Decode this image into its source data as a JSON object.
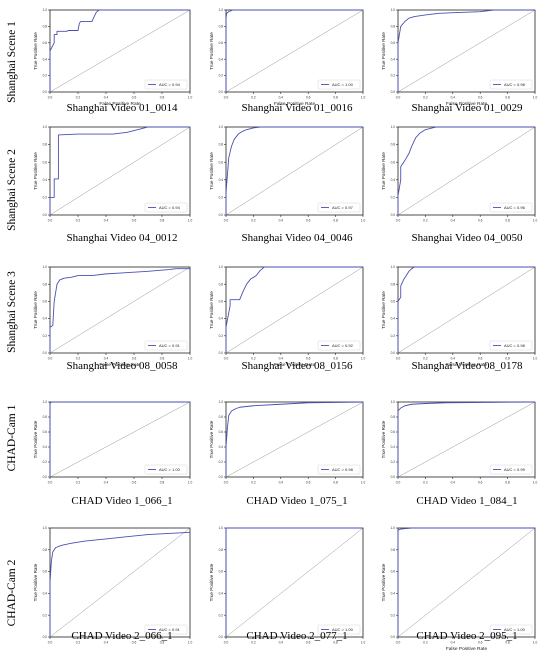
{
  "row_labels": [
    "Shanghai Scene 1",
    "Shanghai Scene 2",
    "Shanghai Scene 3",
    "CHAD-Cam 1",
    "CHAD-Cam 2"
  ],
  "chart_data": [
    {
      "type": "line",
      "title": "Shanghai Video 01_0014",
      "xlabel": "False Positive Rate",
      "ylabel": "True Positive Rate",
      "legend": "AUC = 0.94",
      "legend_position": "bottom-right",
      "xlim": [
        0,
        1
      ],
      "ylim": [
        0,
        1
      ],
      "ticks": [
        "0.0",
        "0.2",
        "0.4",
        "0.6",
        "0.8",
        "1.0"
      ],
      "series": [
        {
          "x": [
            0,
            0,
            0.03,
            0.03,
            0.05,
            0.05,
            0.12,
            0.13,
            0.2,
            0.21,
            0.22,
            0.3,
            0.31,
            0.33,
            0.35,
            1
          ],
          "y": [
            0,
            0.5,
            0.6,
            0.7,
            0.7,
            0.74,
            0.74,
            0.75,
            0.75,
            0.84,
            0.86,
            0.86,
            0.9,
            0.97,
            1,
            1
          ]
        },
        {
          "x": [
            0,
            1
          ],
          "y": [
            0,
            1
          ]
        }
      ]
    },
    {
      "type": "line",
      "title": "Shanghai Video 01_0016",
      "xlabel": "False Positive Rate",
      "ylabel": "True Positive Rate",
      "legend": "AUC = 1.00",
      "legend_position": "bottom-right",
      "xlim": [
        0,
        1
      ],
      "ylim": [
        0,
        1
      ],
      "ticks": [
        "0.0",
        "0.2",
        "0.4",
        "0.6",
        "0.8",
        "1.0"
      ],
      "series": [
        {
          "x": [
            0,
            0,
            0.005,
            0.02,
            0.05,
            1
          ],
          "y": [
            0,
            0.9,
            0.96,
            0.98,
            1,
            1
          ]
        },
        {
          "x": [
            0,
            1
          ],
          "y": [
            0,
            1
          ]
        }
      ]
    },
    {
      "type": "line",
      "title": "Shanghai Video 01_0029",
      "xlabel": "False Positive Rate",
      "ylabel": "True Positive Rate",
      "legend": "AUC = 0.98",
      "legend_position": "bottom-right",
      "xlim": [
        0,
        1
      ],
      "ylim": [
        0,
        1
      ],
      "ticks": [
        "0.0",
        "0.2",
        "0.4",
        "0.6",
        "0.8",
        "1.0"
      ],
      "series": [
        {
          "x": [
            0,
            0,
            0.02,
            0.05,
            0.08,
            0.12,
            0.2,
            0.3,
            0.45,
            0.6,
            0.7,
            1
          ],
          "y": [
            0,
            0.6,
            0.8,
            0.86,
            0.9,
            0.92,
            0.94,
            0.96,
            0.97,
            0.98,
            1,
            1
          ]
        },
        {
          "x": [
            0,
            1
          ],
          "y": [
            0,
            1
          ]
        }
      ]
    },
    {
      "type": "line",
      "title": "Shanghai Video 04_0012",
      "xlabel": "",
      "ylabel": "True Positive Rate",
      "legend": "AUC = 0.94",
      "legend_position": "bottom-right",
      "xlim": [
        0,
        1
      ],
      "ylim": [
        0,
        1
      ],
      "ticks": [
        "0.0",
        "0.2",
        "0.4",
        "0.6",
        "0.8",
        "1.0"
      ],
      "series": [
        {
          "x": [
            0,
            0,
            0.03,
            0.03,
            0.06,
            0.06,
            0.2,
            0.45,
            0.55,
            0.6,
            0.65,
            0.7,
            1
          ],
          "y": [
            0,
            0.2,
            0.2,
            0.41,
            0.41,
            0.91,
            0.92,
            0.92,
            0.94,
            0.96,
            0.98,
            1,
            1
          ]
        },
        {
          "x": [
            0,
            1
          ],
          "y": [
            0,
            1
          ]
        }
      ]
    },
    {
      "type": "line",
      "title": "Shanghai Video 04_0046",
      "xlabel": "",
      "ylabel": "True Positive Rate",
      "legend": "AUC = 0.97",
      "legend_position": "bottom-right",
      "xlim": [
        0,
        1
      ],
      "ylim": [
        0,
        1
      ],
      "ticks": [
        "0.0",
        "0.2",
        "0.4",
        "0.6",
        "0.8",
        "1.0"
      ],
      "series": [
        {
          "x": [
            0,
            0,
            0.01,
            0.02,
            0.04,
            0.06,
            0.09,
            0.12,
            0.15,
            0.2,
            0.25,
            1
          ],
          "y": [
            0,
            0.25,
            0.45,
            0.65,
            0.78,
            0.86,
            0.92,
            0.95,
            0.97,
            0.99,
            1,
            1
          ]
        },
        {
          "x": [
            0,
            1
          ],
          "y": [
            0,
            1
          ]
        }
      ]
    },
    {
      "type": "line",
      "title": "Shanghai Video 04_0050",
      "xlabel": "",
      "ylabel": "True Positive Rate",
      "legend": "AUC = 0.96",
      "legend_position": "bottom-right",
      "xlim": [
        0,
        1
      ],
      "ylim": [
        0,
        1
      ],
      "ticks": [
        "0.0",
        "0.2",
        "0.4",
        "0.6",
        "0.8",
        "1.0"
      ],
      "series": [
        {
          "x": [
            0,
            0,
            0.02,
            0.02,
            0.05,
            0.08,
            0.1,
            0.13,
            0.16,
            0.2,
            0.28,
            1
          ],
          "y": [
            0,
            0.22,
            0.4,
            0.55,
            0.62,
            0.7,
            0.78,
            0.88,
            0.93,
            0.97,
            1,
            1
          ]
        },
        {
          "x": [
            0,
            1
          ],
          "y": [
            0,
            1
          ]
        }
      ]
    },
    {
      "type": "line",
      "title": "Shanghai Video 08_0058",
      "xlabel": "False Positive Rate",
      "ylabel": "True Positive Rate",
      "legend": "AUC = 0.91",
      "legend_position": "bottom-right",
      "xlim": [
        0,
        1
      ],
      "ylim": [
        0,
        1
      ],
      "ticks": [
        "0.0",
        "0.2",
        "0.4",
        "0.6",
        "0.8",
        "1.0"
      ],
      "series": [
        {
          "x": [
            0,
            0,
            0.02,
            0.03,
            0.05,
            0.07,
            0.1,
            0.15,
            0.2,
            0.3,
            0.4,
            0.5,
            0.6,
            0.7,
            0.85,
            0.9,
            1
          ],
          "y": [
            0,
            0.3,
            0.32,
            0.6,
            0.8,
            0.85,
            0.87,
            0.88,
            0.9,
            0.9,
            0.92,
            0.93,
            0.94,
            0.95,
            0.97,
            0.98,
            0.98
          ]
        },
        {
          "x": [
            0,
            1
          ],
          "y": [
            0,
            1
          ]
        }
      ]
    },
    {
      "type": "line",
      "title": "Shanghai Video 08_0156",
      "xlabel": "False Positive Rate",
      "ylabel": "True Positive Rate",
      "legend": "AUC = 0.92",
      "legend_position": "bottom-right",
      "xlim": [
        0,
        1
      ],
      "ylim": [
        0,
        1
      ],
      "ticks": [
        "0.0",
        "0.2",
        "0.4",
        "0.6",
        "0.8",
        "1.0"
      ],
      "series": [
        {
          "x": [
            0,
            0,
            0.03,
            0.03,
            0.1,
            0.12,
            0.15,
            0.18,
            0.22,
            0.25,
            0.28,
            1
          ],
          "y": [
            0,
            0.3,
            0.55,
            0.62,
            0.62,
            0.7,
            0.8,
            0.86,
            0.9,
            0.96,
            1,
            1
          ]
        },
        {
          "x": [
            0,
            1
          ],
          "y": [
            0,
            1
          ]
        }
      ]
    },
    {
      "type": "line",
      "title": "Shanghai Video 08_0178",
      "xlabel": "False Positive Rate",
      "ylabel": "True Positive Rate",
      "legend": "AUC = 0.98",
      "legend_position": "bottom-right",
      "xlim": [
        0,
        1
      ],
      "ylim": [
        0,
        1
      ],
      "ticks": [
        "0.0",
        "0.2",
        "0.4",
        "0.6",
        "0.8",
        "1.0"
      ],
      "series": [
        {
          "x": [
            0,
            0,
            0.02,
            0.02,
            0.04,
            0.06,
            0.08,
            0.1,
            0.12,
            1
          ],
          "y": [
            0,
            0.6,
            0.65,
            0.78,
            0.85,
            0.9,
            0.95,
            0.98,
            1,
            1
          ]
        },
        {
          "x": [
            0,
            1
          ],
          "y": [
            0,
            1
          ]
        }
      ]
    },
    {
      "type": "line",
      "title": "CHAD Video 1_066_1",
      "xlabel": "",
      "ylabel": "True Positive Rate",
      "legend": "AUC = 1.00",
      "legend_position": "bottom-right",
      "xlim": [
        0,
        1
      ],
      "ylim": [
        0,
        1
      ],
      "ticks": [
        "0.0",
        "0.2",
        "0.4",
        "0.6",
        "0.8",
        "1.0"
      ],
      "series": [
        {
          "x": [
            0,
            0,
            0.01,
            1
          ],
          "y": [
            0,
            0.98,
            1,
            1
          ]
        },
        {
          "x": [
            0,
            1
          ],
          "y": [
            0,
            1
          ]
        }
      ]
    },
    {
      "type": "line",
      "title": "CHAD Video 1_075_1",
      "xlabel": "",
      "ylabel": "True Positive Rate",
      "legend": "AUC = 0.98",
      "legend_position": "bottom-right",
      "xlim": [
        0,
        1
      ],
      "ylim": [
        0,
        1
      ],
      "ticks": [
        "0.0",
        "0.2",
        "0.4",
        "0.6",
        "0.8",
        "1.0"
      ],
      "series": [
        {
          "x": [
            0,
            0,
            0.01,
            0.02,
            0.04,
            0.07,
            0.1,
            0.2,
            0.4,
            0.6,
            1
          ],
          "y": [
            0,
            0.4,
            0.65,
            0.82,
            0.88,
            0.91,
            0.93,
            0.95,
            0.97,
            0.99,
            1
          ]
        },
        {
          "x": [
            0,
            1
          ],
          "y": [
            0,
            1
          ]
        }
      ]
    },
    {
      "type": "line",
      "title": "CHAD Video 1_084_1",
      "xlabel": "",
      "ylabel": "True Positive Rate",
      "legend": "AUC = 0.99",
      "legend_position": "bottom-right",
      "xlim": [
        0,
        1
      ],
      "ylim": [
        0,
        1
      ],
      "ticks": [
        "0.0",
        "0.2",
        "0.4",
        "0.6",
        "0.8",
        "1.0"
      ],
      "series": [
        {
          "x": [
            0,
            0,
            0.02,
            0.05,
            0.1,
            0.2,
            0.35,
            1
          ],
          "y": [
            0,
            0.88,
            0.92,
            0.95,
            0.97,
            0.98,
            0.99,
            1
          ]
        },
        {
          "x": [
            0,
            1
          ],
          "y": [
            0,
            1
          ]
        }
      ]
    },
    {
      "type": "line",
      "title": "CHAD Video 2_066_1",
      "xlabel": "",
      "ylabel": "True Positive Rate",
      "legend": "AUC = 0.91",
      "legend_position": "bottom-right",
      "xlim": [
        0,
        1
      ],
      "ylim": [
        0,
        1
      ],
      "ticks": [
        "0.0",
        "0.2",
        "0.4",
        "0.6",
        "0.8",
        "1.0"
      ],
      "series": [
        {
          "x": [
            0,
            0,
            0.01,
            0.02,
            0.04,
            0.08,
            0.15,
            0.25,
            0.4,
            0.55,
            0.7,
            0.85,
            1
          ],
          "y": [
            0,
            0.5,
            0.7,
            0.78,
            0.82,
            0.84,
            0.86,
            0.88,
            0.9,
            0.92,
            0.94,
            0.95,
            0.96
          ]
        },
        {
          "x": [
            0,
            1
          ],
          "y": [
            0,
            1
          ]
        }
      ]
    },
    {
      "type": "line",
      "title": "CHAD Video 2_077_1",
      "xlabel": "",
      "ylabel": "True Positive Rate",
      "legend": "AUC = 1.00",
      "legend_position": "bottom-right",
      "xlim": [
        0,
        1
      ],
      "ylim": [
        0,
        1
      ],
      "ticks": [
        "0.0",
        "0.2",
        "0.4",
        "0.6",
        "0.8",
        "1.0"
      ],
      "series": [
        {
          "x": [
            0,
            0,
            1
          ],
          "y": [
            0,
            1,
            1
          ]
        },
        {
          "x": [
            0,
            1
          ],
          "y": [
            0,
            1
          ]
        }
      ]
    },
    {
      "type": "line",
      "title": "CHAD Video 2_095_1",
      "xlabel": "False Positive Rate",
      "ylabel": "True Positive Rate",
      "legend": "AUC = 1.00",
      "legend_position": "bottom-right",
      "xlim": [
        0,
        1
      ],
      "ylim": [
        0,
        1
      ],
      "ticks": [
        "0.0",
        "0.2",
        "0.4",
        "0.6",
        "0.8",
        "1.0"
      ],
      "series": [
        {
          "x": [
            0,
            0,
            0.02,
            0.1,
            1
          ],
          "y": [
            0,
            0.98,
            0.99,
            1,
            1
          ]
        },
        {
          "x": [
            0,
            1
          ],
          "y": [
            0,
            1
          ]
        }
      ]
    }
  ]
}
